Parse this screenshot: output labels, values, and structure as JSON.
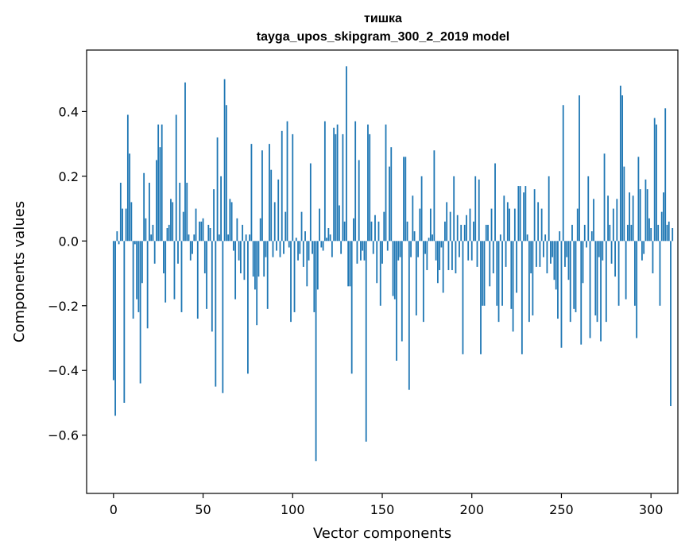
{
  "chart_data": {
    "type": "bar",
    "title": "тишка",
    "subtitle": "tayga_upos_skipgram_300_2_2019 model",
    "xlabel": "Vector components",
    "ylabel": "Components values",
    "xlim": [
      -15,
      315
    ],
    "ylim": [
      -0.78,
      0.59
    ],
    "xticks": [
      0,
      50,
      100,
      150,
      200,
      250,
      300
    ],
    "xtick_labels": [
      "0",
      "50",
      "100",
      "150",
      "200",
      "250",
      "300"
    ],
    "yticks": [
      -0.6,
      -0.4,
      -0.2,
      0.0,
      0.2,
      0.4
    ],
    "ytick_labels": [
      "−0.6",
      "−0.4",
      "−0.2",
      "0.0",
      "0.2",
      "0.4"
    ],
    "bar_color": "#1f77b4",
    "grid": false,
    "values": [
      -0.43,
      -0.54,
      0.03,
      -0.01,
      0.18,
      0.1,
      -0.5,
      0.1,
      0.39,
      0.27,
      0.12,
      -0.24,
      -0.01,
      -0.18,
      -0.22,
      -0.44,
      -0.13,
      0.21,
      0.07,
      -0.27,
      0.18,
      0.02,
      0.05,
      -0.07,
      0.25,
      0.36,
      0.29,
      0.36,
      -0.1,
      -0.19,
      0.04,
      0.05,
      0.13,
      0.12,
      -0.18,
      0.39,
      -0.07,
      0.18,
      -0.22,
      0.09,
      0.49,
      0.18,
      0.02,
      -0.06,
      -0.04,
      0.02,
      0.1,
      -0.24,
      0.06,
      0.06,
      0.07,
      -0.1,
      -0.21,
      0.05,
      0.04,
      -0.28,
      0.16,
      -0.45,
      0.32,
      0.02,
      0.2,
      -0.47,
      0.5,
      0.42,
      0.02,
      0.13,
      0.12,
      -0.03,
      -0.18,
      0.07,
      -0.06,
      -0.1,
      0.05,
      -0.12,
      0.02,
      -0.41,
      0.02,
      0.3,
      -0.11,
      -0.15,
      -0.26,
      -0.11,
      0.07,
      0.28,
      -0.11,
      -0.05,
      -0.21,
      0.3,
      0.22,
      -0.05,
      0.12,
      -0.03,
      0.19,
      -0.05,
      0.34,
      -0.04,
      0.09,
      0.37,
      -0.02,
      -0.25,
      0.33,
      -0.22,
      0.01,
      -0.06,
      -0.04,
      0.09,
      -0.08,
      0.03,
      -0.14,
      -0.06,
      0.24,
      -0.04,
      -0.22,
      -0.68,
      -0.15,
      0.1,
      -0.02,
      -0.03,
      0.37,
      0.01,
      0.04,
      0.02,
      -0.05,
      0.35,
      0.33,
      0.36,
      0.11,
      -0.04,
      0.33,
      0.06,
      0.54,
      -0.14,
      -0.14,
      -0.41,
      0.07,
      0.37,
      -0.07,
      0.25,
      -0.06,
      -0.03,
      -0.06,
      -0.62,
      0.36,
      0.33,
      0.06,
      -0.04,
      0.08,
      -0.13,
      0.06,
      -0.2,
      -0.07,
      0.09,
      0.36,
      -0.03,
      0.23,
      0.29,
      -0.17,
      -0.18,
      -0.37,
      -0.06,
      -0.05,
      -0.31,
      0.26,
      0.26,
      0.06,
      -0.46,
      -0.05,
      0.14,
      0.03,
      -0.23,
      -0.05,
      0.1,
      0.2,
      -0.25,
      -0.04,
      -0.09,
      0.01,
      0.1,
      0.02,
      0.28,
      -0.06,
      -0.13,
      -0.09,
      -0.02,
      -0.16,
      0.06,
      0.12,
      -0.09,
      0.09,
      -0.09,
      0.2,
      -0.1,
      0.08,
      -0.05,
      0.05,
      -0.35,
      0.05,
      0.08,
      -0.06,
      0.1,
      -0.06,
      0.06,
      0.2,
      -0.08,
      0.19,
      -0.35,
      -0.2,
      -0.2,
      0.05,
      0.05,
      -0.14,
      0.1,
      -0.1,
      0.24,
      -0.2,
      -0.25,
      0.02,
      -0.2,
      0.14,
      -0.08,
      0.12,
      0.1,
      -0.21,
      -0.28,
      0.1,
      -0.16,
      0.17,
      0.17,
      -0.35,
      0.15,
      0.17,
      0.02,
      -0.25,
      -0.1,
      -0.23,
      0.16,
      -0.08,
      0.12,
      -0.08,
      0.1,
      -0.05,
      0.02,
      -0.1,
      0.2,
      -0.07,
      -0.05,
      -0.12,
      -0.15,
      -0.24,
      0.03,
      -0.33,
      0.42,
      -0.08,
      -0.05,
      -0.12,
      -0.25,
      0.05,
      -0.21,
      -0.22,
      0.1,
      0.45,
      -0.32,
      -0.13,
      0.05,
      -0.02,
      0.2,
      -0.3,
      0.03,
      0.13,
      -0.23,
      -0.25,
      -0.05,
      -0.31,
      -0.06,
      0.27,
      -0.25,
      0.14,
      0.05,
      -0.07,
      0.1,
      -0.11,
      0.13,
      -0.2,
      0.48,
      0.45,
      0.23,
      -0.18,
      0.05,
      0.15,
      0.05,
      0.14,
      -0.2,
      -0.3,
      0.26,
      0.16,
      -0.06,
      -0.04,
      0.19,
      0.16,
      0.07,
      0.04,
      -0.1,
      0.38,
      0.36,
      0.05,
      -0.2,
      0.09,
      0.15,
      0.41,
      0.05,
      0.06,
      -0.51,
      0.04
    ]
  }
}
